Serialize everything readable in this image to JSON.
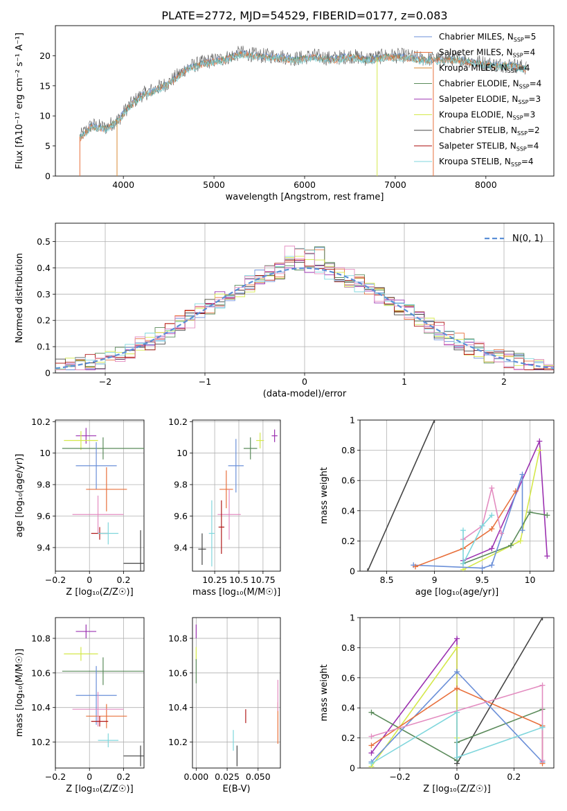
{
  "chart_data": [
    {
      "id": "spectrum",
      "type": "line",
      "title": "PLATE=2772, MJD=54529, FIBERID=0177, z=0.083",
      "xlabel": "wavelength [Angstrom, rest frame]",
      "ylabel": "Flux [fλ10⁻¹⁷ erg cm⁻² s⁻¹ A⁻¹]",
      "xlim": [
        3250,
        8750
      ],
      "ylim": [
        0,
        25
      ],
      "xticks": [
        4000,
        5000,
        6000,
        7000,
        8000
      ],
      "yticks": [
        0,
        5,
        10,
        15,
        20
      ],
      "grid": false,
      "legend_position": "top-right",
      "anchor_points": {
        "wavelength": [
          3520,
          3650,
          3800,
          3950,
          4050,
          4200,
          4350,
          4500,
          4700,
          4900,
          5100,
          5300,
          5500,
          5700,
          5900,
          6100,
          6300,
          6500,
          6700,
          6900,
          7100,
          7300,
          7500,
          7700,
          7900,
          8100,
          8300,
          8450
        ],
        "flux": [
          6.5,
          8.5,
          8,
          9.5,
          11.5,
          13.5,
          14.5,
          15.5,
          18,
          19,
          19.5,
          20.5,
          20,
          20,
          19.5,
          20,
          19.5,
          20,
          19.5,
          20,
          20,
          19.5,
          19.5,
          19.5,
          19,
          18.5,
          18.5,
          18
        ]
      },
      "legend": [
        {
          "name": "Chabrier MILES, N",
          "sub": "SSP",
          "suffix": "=5",
          "color": "#6a8fd8"
        },
        {
          "name": "Salpeter MILES, N",
          "sub": "SSP",
          "suffix": "=4",
          "color": "#e8703c"
        },
        {
          "name": "Kroupa MILES, N",
          "sub": "SSP",
          "suffix": "=4",
          "color": "#d98a33"
        },
        {
          "name": "Chabrier ELODIE, N",
          "sub": "SSP",
          "suffix": "=4",
          "color": "#5a8a5a"
        },
        {
          "name": "Salpeter ELODIE, N",
          "sub": "SSP",
          "suffix": "=3",
          "color": "#9b30b0"
        },
        {
          "name": "Kroupa ELODIE, N",
          "sub": "SSP",
          "suffix": "=3",
          "color": "#d4e84a"
        },
        {
          "name": "Chabrier STELIB, N",
          "sub": "SSP",
          "suffix": "=2",
          "color": "#444444"
        },
        {
          "name": "Salpeter STELIB, N",
          "sub": "SSP",
          "suffix": "=4",
          "color": "#b01818"
        },
        {
          "name": "Kroupa STELIB, N",
          "sub": "SSP",
          "suffix": "=4",
          "color": "#7fd6dc"
        }
      ]
    },
    {
      "id": "residuals",
      "type": "histogram",
      "xlabel": "(data-model)/error",
      "ylabel": "Normed distribution",
      "xlim": [
        -2.5,
        2.5
      ],
      "ylim": [
        0,
        0.57
      ],
      "xticks": [
        -2,
        -1,
        0,
        1,
        2
      ],
      "yticks": [
        0,
        0.1,
        0.2,
        0.3,
        0.4,
        0.5
      ],
      "grid": true,
      "legend_label": "N(0, 1)",
      "legend_position": "top-right",
      "bin_width": 0.1,
      "bin_start": -2.5,
      "series_colors": [
        "#6a8fd8",
        "#e8703c",
        "#5a8a5a",
        "#9b30b0",
        "#d4e84a",
        "#444444",
        "#b01818",
        "#7fd6dc",
        "#e38cc0"
      ]
    },
    {
      "id": "age-vs-Z",
      "type": "scatter",
      "xlabel": "Z [log₁₀(Z/Z☉)]",
      "ylabel": "age  [log₁₀(age/yr)]",
      "xlim": [
        -0.2,
        0.32
      ],
      "ylim": [
        9.25,
        10.21
      ],
      "xticks": [
        -0.2,
        0.0,
        0.2
      ],
      "yticks": [
        9.4,
        9.6,
        9.8,
        10.0,
        10.2
      ],
      "points": [
        {
          "x": -0.02,
          "y": 10.11,
          "xerr": 0.06,
          "yerr": 0.05,
          "color": "#9b30b0"
        },
        {
          "x": -0.05,
          "y": 10.08,
          "xerr": 0.1,
          "yerr": 0.06,
          "color": "#d4e84a"
        },
        {
          "x": 0.08,
          "y": 10.03,
          "xerr": 0.24,
          "yerr": 0.07,
          "color": "#5a8a5a"
        },
        {
          "x": 0.04,
          "y": 9.92,
          "xerr": 0.12,
          "yerr": 0.15,
          "color": "#6a8fd8"
        },
        {
          "x": 0.1,
          "y": 9.77,
          "xerr": 0.12,
          "yerr": 0.14,
          "color": "#e8703c"
        },
        {
          "x": 0.05,
          "y": 9.61,
          "xerr": 0.15,
          "yerr": 0.12,
          "color": "#e38cc0"
        },
        {
          "x": 0.06,
          "y": 9.49,
          "xerr": 0.05,
          "yerr": 0.04,
          "color": "#b01818"
        },
        {
          "x": 0.11,
          "y": 9.49,
          "xerr": 0.06,
          "yerr": 0.07,
          "color": "#7fd6dc"
        },
        {
          "x": 0.3,
          "y": 9.3,
          "xerr": 0.1,
          "yerr": 0.21,
          "color": "#444444"
        }
      ]
    },
    {
      "id": "age-vs-mass",
      "type": "scatter",
      "xlabel": "mass [log₁₀(M/M☉)]",
      "ylabel": "",
      "xlim": [
        10.02,
        10.93
      ],
      "ylim": [
        9.25,
        10.21
      ],
      "xticks": [
        10.25,
        10.5,
        10.75
      ],
      "yticks": [
        9.4,
        9.6,
        9.8,
        10.0,
        10.2
      ],
      "points": [
        {
          "x": 10.87,
          "y": 10.11,
          "xerr": 0.03,
          "yerr": 0.04,
          "color": "#9b30b0"
        },
        {
          "x": 10.72,
          "y": 10.08,
          "xerr": 0.04,
          "yerr": 0.05,
          "color": "#d4e84a"
        },
        {
          "x": 10.62,
          "y": 10.03,
          "xerr": 0.07,
          "yerr": 0.07,
          "color": "#5a8a5a"
        },
        {
          "x": 10.47,
          "y": 9.92,
          "xerr": 0.08,
          "yerr": 0.17,
          "color": "#6a8fd8"
        },
        {
          "x": 10.37,
          "y": 9.77,
          "xerr": 0.07,
          "yerr": 0.12,
          "color": "#e8703c"
        },
        {
          "x": 10.4,
          "y": 9.61,
          "xerr": 0.12,
          "yerr": 0.16,
          "color": "#e38cc0"
        },
        {
          "x": 10.32,
          "y": 9.53,
          "xerr": 0.03,
          "yerr": 0.17,
          "color": "#b01818"
        },
        {
          "x": 10.22,
          "y": 9.49,
          "xerr": 0.03,
          "yerr": 0.21,
          "color": "#7fd6dc"
        },
        {
          "x": 10.12,
          "y": 9.39,
          "xerr": 0.04,
          "yerr": 0.1,
          "color": "#444444"
        }
      ]
    },
    {
      "id": "weights-vs-age",
      "type": "line",
      "xlabel": "age  [log₁₀(age/yr)]",
      "ylabel": "mass weight",
      "xlim": [
        8.22,
        10.25
      ],
      "ylim": [
        0,
        1.0
      ],
      "xticks": [
        8.5,
        9.0,
        9.5,
        10.0
      ],
      "yticks": [
        0.0,
        0.2,
        0.4,
        0.6,
        0.8,
        1.0
      ],
      "grid": true,
      "series": [
        {
          "color": "#444444",
          "x": [
            8.3,
            9.0
          ],
          "y": [
            0.0,
            1.0
          ]
        },
        {
          "color": "#9b30b0",
          "x": [
            9.3,
            9.6,
            10.1,
            10.18
          ],
          "y": [
            0.07,
            0.15,
            0.86,
            0.1
          ]
        },
        {
          "color": "#d4e84a",
          "x": [
            9.3,
            9.9,
            10.1
          ],
          "y": [
            0.01,
            0.2,
            0.8
          ]
        },
        {
          "color": "#5a8a5a",
          "x": [
            9.3,
            9.8,
            10.0,
            10.18
          ],
          "y": [
            0.05,
            0.17,
            0.39,
            0.37
          ]
        },
        {
          "color": "#6a8fd8",
          "x": [
            8.78,
            9.5,
            9.6,
            9.92,
            9.92
          ],
          "y": [
            0.04,
            0.02,
            0.04,
            0.64,
            0.27
          ]
        },
        {
          "color": "#e8703c",
          "x": [
            8.8,
            9.3,
            9.6,
            9.85
          ],
          "y": [
            0.03,
            0.15,
            0.28,
            0.53
          ]
        },
        {
          "color": "#e38cc0",
          "x": [
            9.3,
            9.5,
            9.6,
            9.7
          ],
          "y": [
            0.21,
            0.3,
            0.55,
            0.25
          ]
        },
        {
          "color": "#7fd6dc",
          "x": [
            9.3,
            9.3,
            9.5,
            9.6
          ],
          "y": [
            0.27,
            0.05,
            0.3,
            0.37
          ]
        }
      ]
    },
    {
      "id": "mass-vs-Z",
      "type": "scatter",
      "xlabel": "Z [log₁₀(Z/Z☉)]",
      "ylabel": "mass [log₁₀(M/M☉)]",
      "xlim": [
        -0.2,
        0.32
      ],
      "ylim": [
        10.05,
        10.92
      ],
      "xticks": [
        -0.2,
        0.0,
        0.2
      ],
      "yticks": [
        10.2,
        10.4,
        10.6,
        10.8
      ],
      "points": [
        {
          "x": -0.02,
          "y": 10.84,
          "xerr": 0.06,
          "yerr": 0.04,
          "color": "#9b30b0"
        },
        {
          "x": -0.05,
          "y": 10.71,
          "xerr": 0.1,
          "yerr": 0.04,
          "color": "#d4e84a"
        },
        {
          "x": 0.08,
          "y": 10.61,
          "xerr": 0.24,
          "yerr": 0.08,
          "color": "#5a8a5a"
        },
        {
          "x": 0.04,
          "y": 10.47,
          "xerr": 0.12,
          "yerr": 0.17,
          "color": "#6a8fd8"
        },
        {
          "x": 0.1,
          "y": 10.35,
          "xerr": 0.12,
          "yerr": 0.07,
          "color": "#e8703c"
        },
        {
          "x": 0.05,
          "y": 10.39,
          "xerr": 0.15,
          "yerr": 0.1,
          "color": "#e38cc0"
        },
        {
          "x": 0.06,
          "y": 10.32,
          "xerr": 0.05,
          "yerr": 0.03,
          "color": "#b01818"
        },
        {
          "x": 0.11,
          "y": 10.21,
          "xerr": 0.06,
          "yerr": 0.04,
          "color": "#7fd6dc"
        },
        {
          "x": 0.3,
          "y": 10.12,
          "xerr": 0.1,
          "yerr": 0.06,
          "color": "#444444"
        }
      ]
    },
    {
      "id": "mass-vs-ebv",
      "type": "scatter",
      "xlabel": "E(B-V)",
      "ylabel": "",
      "xlim": [
        -0.003,
        0.068
      ],
      "ylim": [
        10.05,
        10.92
      ],
      "xticks": [
        0.0,
        0.025,
        0.05
      ],
      "xticklabels": [
        "0.000",
        "0.025",
        "0.050"
      ],
      "yticks": [
        10.2,
        10.4,
        10.6,
        10.8
      ],
      "points": [
        {
          "x": 0.0,
          "y": 10.84,
          "xerr": 0.0,
          "yerr": 0.04,
          "color": "#9b30b0"
        },
        {
          "x": 0.0,
          "y": 10.71,
          "xerr": 0.0,
          "yerr": 0.04,
          "color": "#d4e84a"
        },
        {
          "x": 0.0,
          "y": 10.61,
          "xerr": 0.0,
          "yerr": 0.07,
          "color": "#5a8a5a"
        },
        {
          "x": 0.066,
          "y": 10.31,
          "xerr": 0.0,
          "yerr": 0.12,
          "color": "#e8703c"
        },
        {
          "x": 0.066,
          "y": 10.47,
          "xerr": 0.0,
          "yerr": 0.09,
          "color": "#e38cc0"
        },
        {
          "x": 0.04,
          "y": 10.35,
          "xerr": 0.0,
          "yerr": 0.04,
          "color": "#b01818"
        },
        {
          "x": 0.03,
          "y": 10.21,
          "xerr": 0.0,
          "yerr": 0.06,
          "color": "#7fd6dc"
        },
        {
          "x": 0.033,
          "y": 10.12,
          "xerr": 0.0,
          "yerr": 0.06,
          "color": "#444444"
        }
      ]
    },
    {
      "id": "weights-vs-Z",
      "type": "line",
      "xlabel": "Z [log₁₀(Z/Z☉)]",
      "ylabel": "mass weight",
      "xlim": [
        -0.34,
        0.34
      ],
      "ylim": [
        0,
        1.0
      ],
      "xticks": [
        -0.2,
        0.0,
        0.2
      ],
      "yticks": [
        0.0,
        0.2,
        0.4,
        0.6,
        0.8,
        1.0
      ],
      "grid": true,
      "series": [
        {
          "color": "#444444",
          "x": [
            0.0,
            0.3
          ],
          "y": [
            0.03,
            1.0
          ]
        },
        {
          "color": "#9b30b0",
          "x": [
            -0.3,
            0.0,
            0.0
          ],
          "y": [
            0.1,
            0.86,
            0.05
          ]
        },
        {
          "color": "#d4e84a",
          "x": [
            -0.3,
            0.0,
            0.0
          ],
          "y": [
            0.01,
            0.8,
            0.2
          ]
        },
        {
          "color": "#5a8a5a",
          "x": [
            -0.3,
            0.0,
            0.0,
            0.3
          ],
          "y": [
            0.37,
            0.05,
            0.17,
            0.39
          ]
        },
        {
          "color": "#6a8fd8",
          "x": [
            -0.3,
            0.0,
            0.3,
            0.3
          ],
          "y": [
            0.04,
            0.64,
            0.04,
            0.27
          ]
        },
        {
          "color": "#e8703c",
          "x": [
            -0.3,
            0.0,
            0.3,
            0.3
          ],
          "y": [
            0.15,
            0.53,
            0.28,
            0.03
          ]
        },
        {
          "color": "#e38cc0",
          "x": [
            -0.3,
            0.3,
            0.3
          ],
          "y": [
            0.21,
            0.55,
            0.05
          ]
        },
        {
          "color": "#7fd6dc",
          "x": [
            -0.3,
            0.0,
            0.0,
            0.3
          ],
          "y": [
            0.03,
            0.37,
            0.07,
            0.27
          ]
        }
      ]
    }
  ]
}
